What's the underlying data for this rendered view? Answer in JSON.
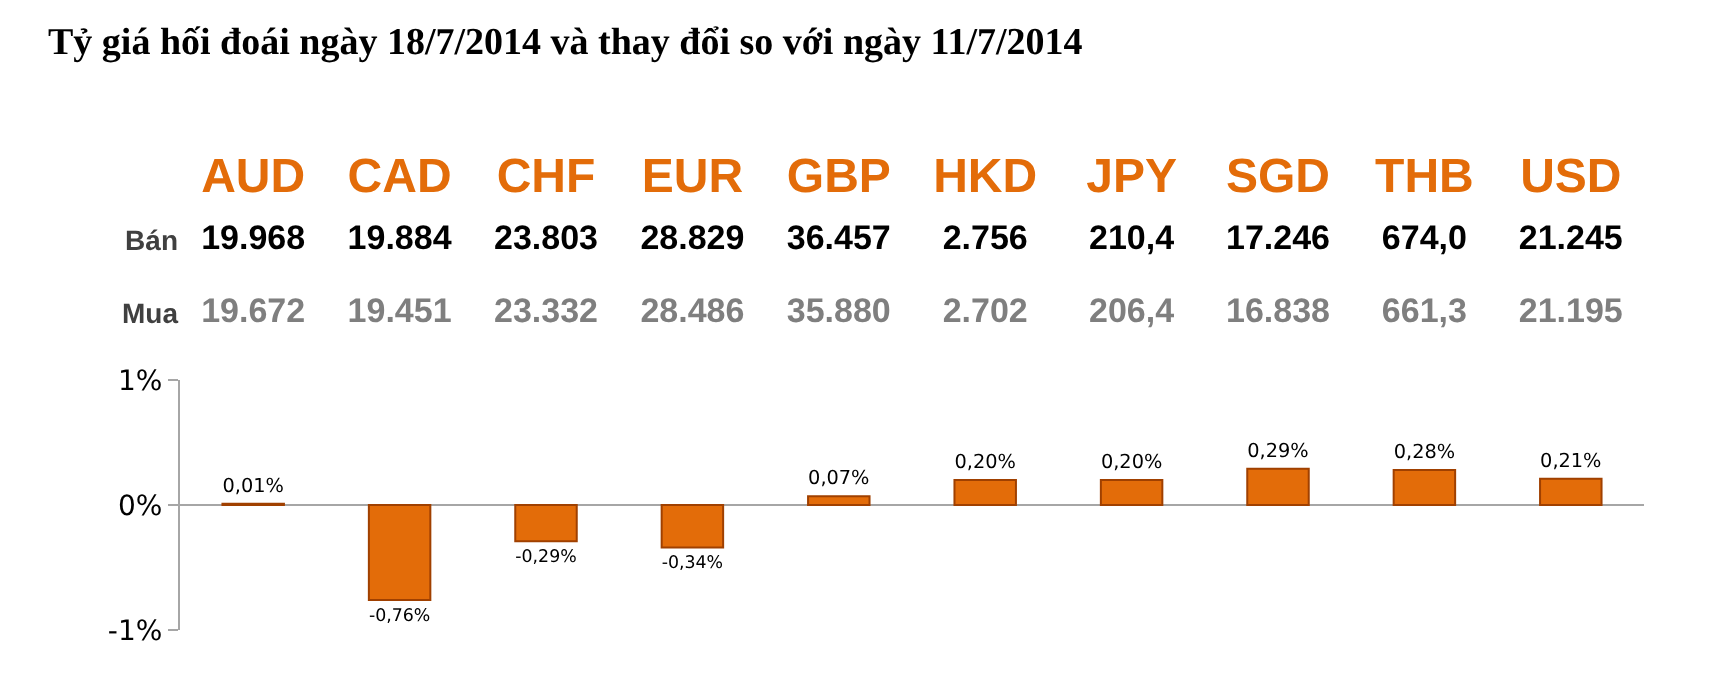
{
  "chart_data": [
    {
      "type": "other",
      "title": "Tỷ giá hối đoái ngày 18/7/2014 và thay đổi so với ngày 11/7/2014",
      "categories": [
        "AUD",
        "CAD",
        "CHF",
        "EUR",
        "GBP",
        "HKD",
        "JPY",
        "SGD",
        "THB",
        "USD"
      ],
      "y_categories": [
        "Bán",
        "Mua"
      ],
      "cell_labels": [
        [
          "19.968",
          "19.884",
          "23.803",
          "28.829",
          "36.457",
          "2.756",
          "210,4",
          "17.246",
          "674,0",
          "21.245"
        ],
        [
          "19.672",
          "19.451",
          "23.332",
          "28.486",
          "35.880",
          "2.702",
          "206,4",
          "16.838",
          "661,3",
          "21.195"
        ]
      ]
    },
    {
      "type": "bar",
      "categories": [
        null,
        null,
        null,
        null,
        null,
        null,
        null,
        null,
        null,
        null
      ],
      "values": [
        0.01,
        -0.76,
        -0.29,
        -0.34,
        0.07,
        0.2,
        0.2,
        0.29,
        0.28,
        0.21
      ],
      "value_labels": [
        "0,01%",
        "-0,76%",
        "-0,29%",
        "-0,34%",
        "0,07%",
        "0,20%",
        "0,20%",
        "0,29%",
        "0,28%",
        "0,21%"
      ],
      "color": "#e36c09",
      "ylim": [
        -1,
        1
      ],
      "yticks": [
        {
          "value": -1,
          "label": "-1%"
        },
        {
          "value": 0,
          "label": "0%"
        },
        {
          "value": 1,
          "label": "1%"
        }
      ],
      "grid": "y"
    }
  ]
}
